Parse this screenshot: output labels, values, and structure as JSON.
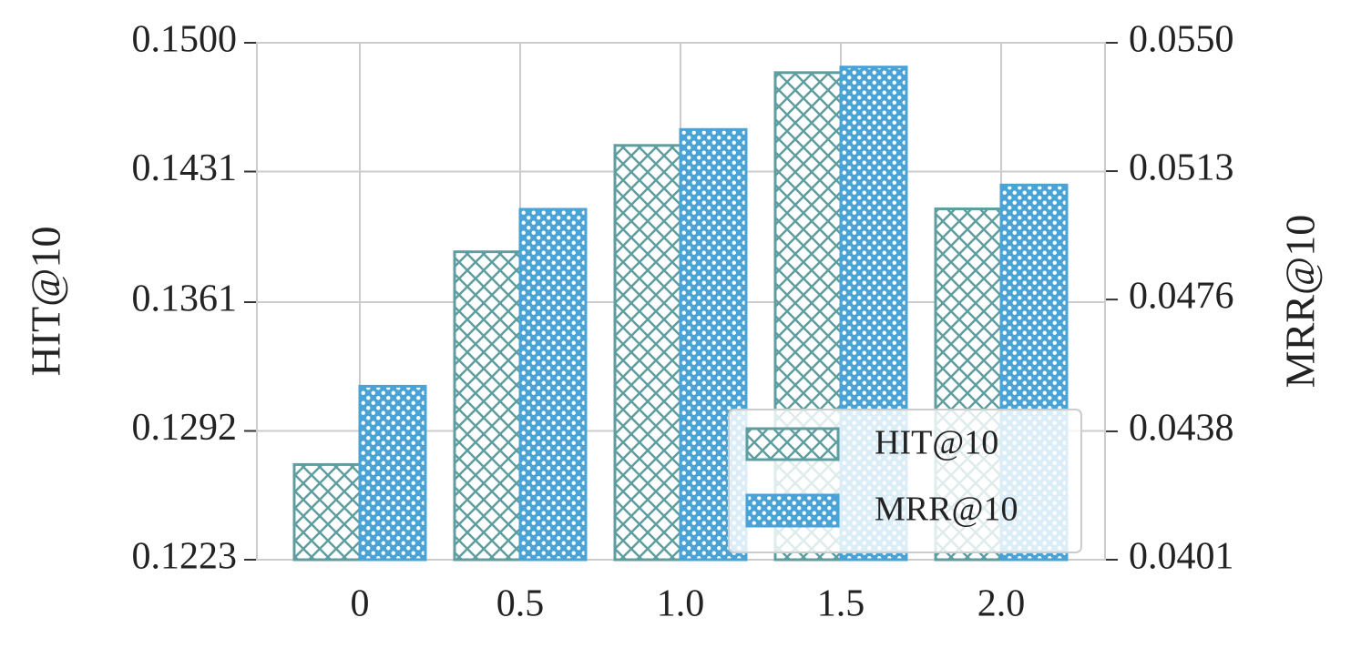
{
  "chart_data": {
    "type": "bar",
    "categories": [
      "0",
      "0.5",
      "1.0",
      "1.5",
      "2.0"
    ],
    "series": [
      {
        "name": "HIT@10",
        "color": "#5f9ea0",
        "pattern": "crosshatch",
        "values": [
          0.1274,
          0.1388,
          0.1445,
          0.1484,
          0.1411
        ]
      },
      {
        "name": "MRR@10",
        "color": "#4aa3d6",
        "pattern": "dots",
        "axis": "y2",
        "values": [
          0.0451,
          0.0502,
          0.0525,
          0.0543,
          0.0509
        ]
      }
    ],
    "ylabel": "HIT@10",
    "y2label": "MRR@10",
    "ylim": [
      0.1223,
      0.15
    ],
    "yticks": [
      0.1223,
      0.1292,
      0.1361,
      0.1431,
      {
        "value": 0.15,
        "label": "0.1500"
      }
    ],
    "y2lim": [
      0.0401,
      0.055
    ],
    "y2ticks": [
      0.0401,
      0.0438,
      0.0476,
      0.0513,
      {
        "value": 0.055,
        "label": "0.0550"
      }
    ],
    "grid": true,
    "legend": "lower right"
  }
}
